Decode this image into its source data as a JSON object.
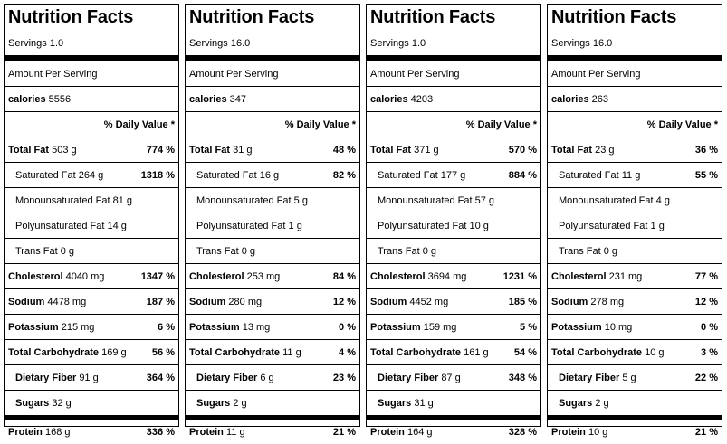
{
  "panels": [
    {
      "title": "Nutrition Facts",
      "servings": "Servings 1.0",
      "amount_per_serving": "Amount Per Serving",
      "calories_label": "calories",
      "calories_value": "5556",
      "dv_header": "% Daily Value *",
      "rows": [
        {
          "label": "Total Fat",
          "amount": "503 g",
          "dv": "774 %"
        },
        {
          "label": "Saturated Fat",
          "amount": "264 g",
          "dv": "1318 %"
        },
        {
          "label": "Monounsaturated Fat",
          "amount": "81 g",
          "dv": ""
        },
        {
          "label": "Polyunsaturated Fat",
          "amount": "14 g",
          "dv": ""
        },
        {
          "label": "Trans Fat",
          "amount": "0 g",
          "dv": ""
        },
        {
          "label": "Cholesterol",
          "amount": "4040 mg",
          "dv": "1347 %"
        },
        {
          "label": "Sodium",
          "amount": "4478 mg",
          "dv": "187 %"
        },
        {
          "label": "Potassium",
          "amount": "215 mg",
          "dv": "6 %"
        },
        {
          "label": "Total Carbohydrate",
          "amount": "169 g",
          "dv": "56 %"
        },
        {
          "label": "Dietary Fiber",
          "amount": "91 g",
          "dv": "364 %"
        },
        {
          "label": "Sugars",
          "amount": "32 g",
          "dv": ""
        },
        {
          "label": "Protein",
          "amount": "168 g",
          "dv": "336 %"
        }
      ]
    },
    {
      "title": "Nutrition Facts",
      "servings": "Servings 16.0",
      "amount_per_serving": "Amount Per Serving",
      "calories_label": "calories",
      "calories_value": "347",
      "dv_header": "% Daily Value *",
      "rows": [
        {
          "label": "Total Fat",
          "amount": "31 g",
          "dv": "48 %"
        },
        {
          "label": "Saturated Fat",
          "amount": "16 g",
          "dv": "82 %"
        },
        {
          "label": "Monounsaturated Fat",
          "amount": "5 g",
          "dv": ""
        },
        {
          "label": "Polyunsaturated Fat",
          "amount": "1 g",
          "dv": ""
        },
        {
          "label": "Trans Fat",
          "amount": "0 g",
          "dv": ""
        },
        {
          "label": "Cholesterol",
          "amount": "253 mg",
          "dv": "84 %"
        },
        {
          "label": "Sodium",
          "amount": "280 mg",
          "dv": "12 %"
        },
        {
          "label": "Potassium",
          "amount": "13 mg",
          "dv": "0 %"
        },
        {
          "label": "Total Carbohydrate",
          "amount": "11 g",
          "dv": "4 %"
        },
        {
          "label": "Dietary Fiber",
          "amount": "6 g",
          "dv": "23 %"
        },
        {
          "label": "Sugars",
          "amount": "2 g",
          "dv": ""
        },
        {
          "label": "Protein",
          "amount": "11 g",
          "dv": "21 %"
        }
      ]
    },
    {
      "title": "Nutrition Facts",
      "servings": "Servings 1.0",
      "amount_per_serving": "Amount Per Serving",
      "calories_label": "calories",
      "calories_value": "4203",
      "dv_header": "% Daily Value *",
      "rows": [
        {
          "label": "Total Fat",
          "amount": "371 g",
          "dv": "570 %"
        },
        {
          "label": "Saturated Fat",
          "amount": "177 g",
          "dv": "884 %"
        },
        {
          "label": "Monounsaturated Fat",
          "amount": "57 g",
          "dv": ""
        },
        {
          "label": "Polyunsaturated Fat",
          "amount": "10 g",
          "dv": ""
        },
        {
          "label": "Trans Fat",
          "amount": "0 g",
          "dv": ""
        },
        {
          "label": "Cholesterol",
          "amount": "3694 mg",
          "dv": "1231 %"
        },
        {
          "label": "Sodium",
          "amount": "4452 mg",
          "dv": "185 %"
        },
        {
          "label": "Potassium",
          "amount": "159 mg",
          "dv": "5 %"
        },
        {
          "label": "Total Carbohydrate",
          "amount": "161 g",
          "dv": "54 %"
        },
        {
          "label": "Dietary Fiber",
          "amount": "87 g",
          "dv": "348 %"
        },
        {
          "label": "Sugars",
          "amount": "31 g",
          "dv": ""
        },
        {
          "label": "Protein",
          "amount": "164 g",
          "dv": "328 %"
        }
      ]
    },
    {
      "title": "Nutrition Facts",
      "servings": "Servings 16.0",
      "amount_per_serving": "Amount Per Serving",
      "calories_label": "calories",
      "calories_value": "263",
      "dv_header": "% Daily Value *",
      "rows": [
        {
          "label": "Total Fat",
          "amount": "23 g",
          "dv": "36 %"
        },
        {
          "label": "Saturated Fat",
          "amount": "11 g",
          "dv": "55 %"
        },
        {
          "label": "Monounsaturated Fat",
          "amount": "4 g",
          "dv": ""
        },
        {
          "label": "Polyunsaturated Fat",
          "amount": "1 g",
          "dv": ""
        },
        {
          "label": "Trans Fat",
          "amount": "0 g",
          "dv": ""
        },
        {
          "label": "Cholesterol",
          "amount": "231 mg",
          "dv": "77 %"
        },
        {
          "label": "Sodium",
          "amount": "278 mg",
          "dv": "12 %"
        },
        {
          "label": "Potassium",
          "amount": "10 mg",
          "dv": "0 %"
        },
        {
          "label": "Total Carbohydrate",
          "amount": "10 g",
          "dv": "3 %"
        },
        {
          "label": "Dietary Fiber",
          "amount": "5 g",
          "dv": "22 %"
        },
        {
          "label": "Sugars",
          "amount": "2 g",
          "dv": ""
        },
        {
          "label": "Protein",
          "amount": "10 g",
          "dv": "21 %"
        }
      ]
    }
  ]
}
